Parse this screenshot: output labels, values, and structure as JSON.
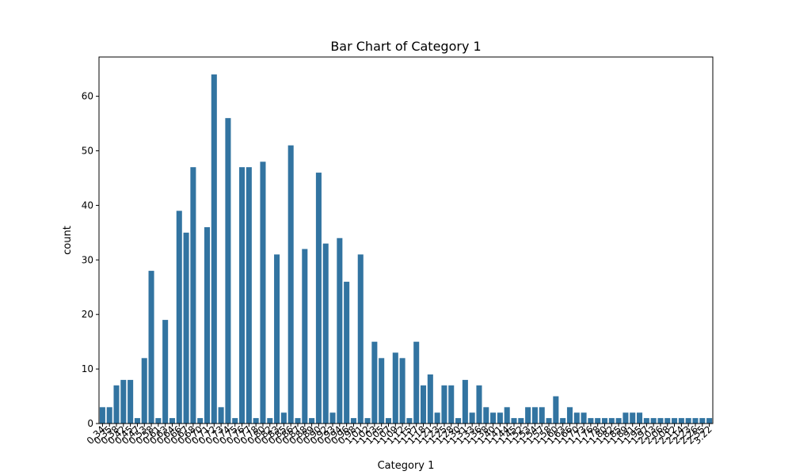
{
  "chart_data": {
    "type": "bar",
    "title": "Bar Chart of Category 1",
    "xlabel": "Category 1",
    "ylabel": "count",
    "ylim": [
      0,
      67.2
    ],
    "yticks": [
      0,
      10,
      20,
      30,
      40,
      50,
      60
    ],
    "bar_color": "#3274a1",
    "grid": false,
    "legend": "none",
    "categories": [
      "0.34",
      "0.35",
      "0.38",
      "0.42",
      "0.45",
      "0.47",
      "0.53",
      "0.58",
      "0.61",
      "0.63",
      "0.64",
      "0.66",
      "0.67",
      "0.68",
      "0.70",
      "0.71",
      "0.72",
      "0.73",
      "0.74",
      "0.75",
      "0.76",
      "0.77",
      "0.78",
      "0.80",
      "0.82",
      "0.83",
      "0.85",
      "0.86",
      "0.87",
      "0.88",
      "0.89",
      "0.90",
      "0.92",
      "0.93",
      "0.94",
      "0.96",
      "0.98",
      "1.01",
      "1.02",
      "1.03",
      "1.05",
      "1.07",
      "1.09",
      "1.12",
      "1.15",
      "1.17",
      "1.18",
      "1.21",
      "1.23",
      "1.25",
      "1.28",
      "1.30",
      "1.31",
      "1.33",
      "1.36",
      "1.38",
      "1.40",
      "1.41",
      "1.44",
      "1.45",
      "1.52",
      "1.53",
      "1.54",
      "1.57",
      "1.58",
      "1.60",
      "1.63",
      "1.66",
      "1.70",
      "1.73",
      "1.76",
      "1.78",
      "1.80",
      "1.82",
      "1.85",
      "1.89",
      "1.91",
      "1.95",
      "1.97",
      "2.03",
      "2.06",
      "2.08",
      "2.12",
      "2.14",
      "2.23",
      "2.26",
      "2.55",
      "3.22"
    ],
    "values": [
      3,
      3,
      7,
      8,
      8,
      1,
      12,
      28,
      1,
      19,
      1,
      39,
      35,
      47,
      1,
      36,
      64,
      3,
      56,
      1,
      47,
      47,
      1,
      48,
      1,
      31,
      2,
      51,
      1,
      32,
      1,
      46,
      33,
      2,
      34,
      26,
      1,
      31,
      1,
      15,
      12,
      1,
      13,
      12,
      1,
      15,
      7,
      9,
      2,
      7,
      7,
      1,
      8,
      2,
      7,
      3,
      2,
      2,
      3,
      1,
      1,
      3,
      3,
      3,
      1,
      5,
      1,
      3,
      2,
      2,
      1,
      1,
      1,
      1,
      1,
      2,
      2,
      2,
      1,
      1,
      1,
      1,
      1,
      1,
      1,
      1,
      1,
      1
    ],
    "visible_tick_labels": [
      "0.34",
      "0.35",
      "0.38",
      "0.42",
      "0.45",
      "0.47",
      "0.53",
      "0.58",
      "0.61",
      "0.63",
      "0.64",
      "0.66",
      "0.67",
      "0.68",
      "0.70",
      "0.71",
      "0.72",
      "0.73",
      "0.74",
      "0.75",
      "0.76",
      "0.77",
      "0.78",
      "0.80",
      "0.82",
      "0.83",
      "0.85",
      "0.86",
      "0.87",
      "0.88",
      "0.89",
      "0.90",
      "0.92",
      "0.93",
      "0.94",
      "0.96",
      "0.98",
      "1.01",
      "1.02",
      "1.03",
      "1.05",
      "1.07",
      "1.09",
      "1.12",
      "1.15",
      "1.17",
      "1.18",
      "1.21",
      "1.23",
      "1.25",
      "1.28",
      "1.30",
      "1.31",
      "1.33",
      "1.36",
      "1.38",
      "1.40",
      "1.41",
      "1.44",
      "1.45",
      "1.52",
      "1.53",
      "1.54",
      "1.57",
      "1.58",
      "1.60",
      "1.63",
      "1.66",
      "1.70",
      "1.73",
      "1.76",
      "1.78",
      "1.80",
      "1.82",
      "1.85",
      "1.89",
      "1.91",
      "1.95",
      "1.97",
      "2.03",
      "2.06",
      "2.08",
      "2.12",
      "2.14",
      "2.23",
      "2.26",
      "2.55",
      "3.22"
    ]
  }
}
